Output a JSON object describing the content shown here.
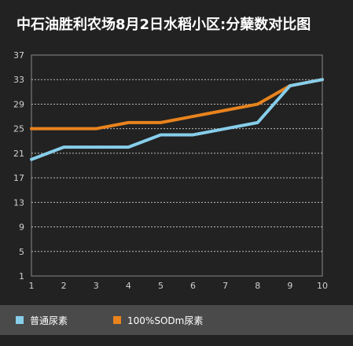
{
  "title": "中石油胜利农场8月2日水稻小区:分蘖数对比图",
  "chart_data": {
    "type": "line",
    "x": [
      1,
      2,
      3,
      4,
      5,
      6,
      7,
      8,
      9,
      10
    ],
    "xlim": [
      1,
      10
    ],
    "ylim": [
      1,
      37
    ],
    "yticks": [
      1,
      5,
      9,
      13,
      17,
      21,
      25,
      29,
      33,
      37
    ],
    "grid": true,
    "legend_position": "bottom",
    "series": [
      {
        "name": "普通尿素",
        "color": "#87ceeb",
        "values": [
          20,
          22,
          22,
          22,
          24,
          24,
          25,
          26,
          32,
          33
        ]
      },
      {
        "name": "100%SODm尿素",
        "color": "#e8831e",
        "values": [
          25,
          25,
          25,
          26,
          26,
          27,
          28,
          29,
          32,
          33
        ]
      }
    ]
  }
}
